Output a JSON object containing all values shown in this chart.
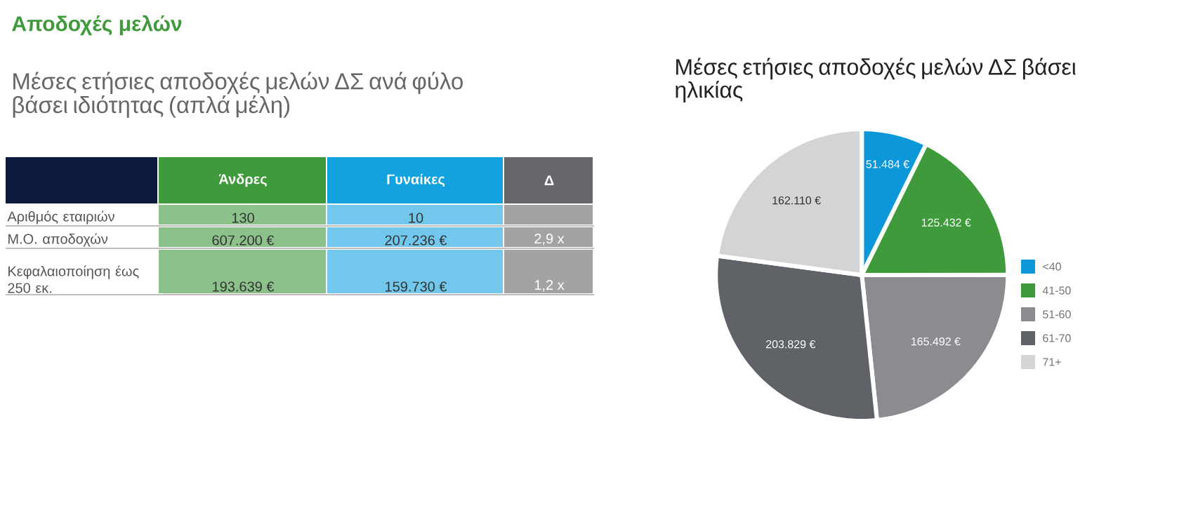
{
  "chart_data": [
    {
      "type": "other",
      "title": "Αποδοχές μελών",
      "subtitle": "Μέσες ετήσιες αποδοχές μελών ΔΣ ανά φύλο βάσει ιδιότητας (απλά μέλη)",
      "categories": [
        null,
        "Άνδρες",
        "Γυναίκες",
        "Δ"
      ],
      "colors": [
        "#0b1a3c",
        "#3f9a3c",
        "#12a2e0",
        "#64666a"
      ],
      "y_categories": [
        "Αριθμός εταιριών",
        "Μ.Ο. αποδοχών",
        "Κεφαλαιοποίηση έως 250 εκ."
      ],
      "cell_labels": [
        [
          "130",
          "10",
          null
        ],
        [
          "607.200 €",
          "207.236 €",
          "2,9 x"
        ],
        [
          "193.639 €",
          "159.730 €",
          "1,2 x"
        ]
      ]
    },
    {
      "type": "pie",
      "title": "Μέσες ετήσιες αποδοχές μελών ΔΣ βάσει ηλικίας",
      "categories": [
        "<40",
        "41-50",
        "51-60",
        "61-70",
        "71+"
      ],
      "values": [
        51484,
        125432,
        165492,
        203829,
        162110
      ],
      "value_labels": [
        "51.484 €",
        "125.432 €",
        "165.492 €",
        "203.829 €",
        "162.110 €"
      ],
      "colors": [
        "#0b97d9",
        "#3f9a3c",
        "#8a8c8f",
        "#5f6267",
        "#d3d4d6"
      ],
      "legend": "right"
    }
  ]
}
